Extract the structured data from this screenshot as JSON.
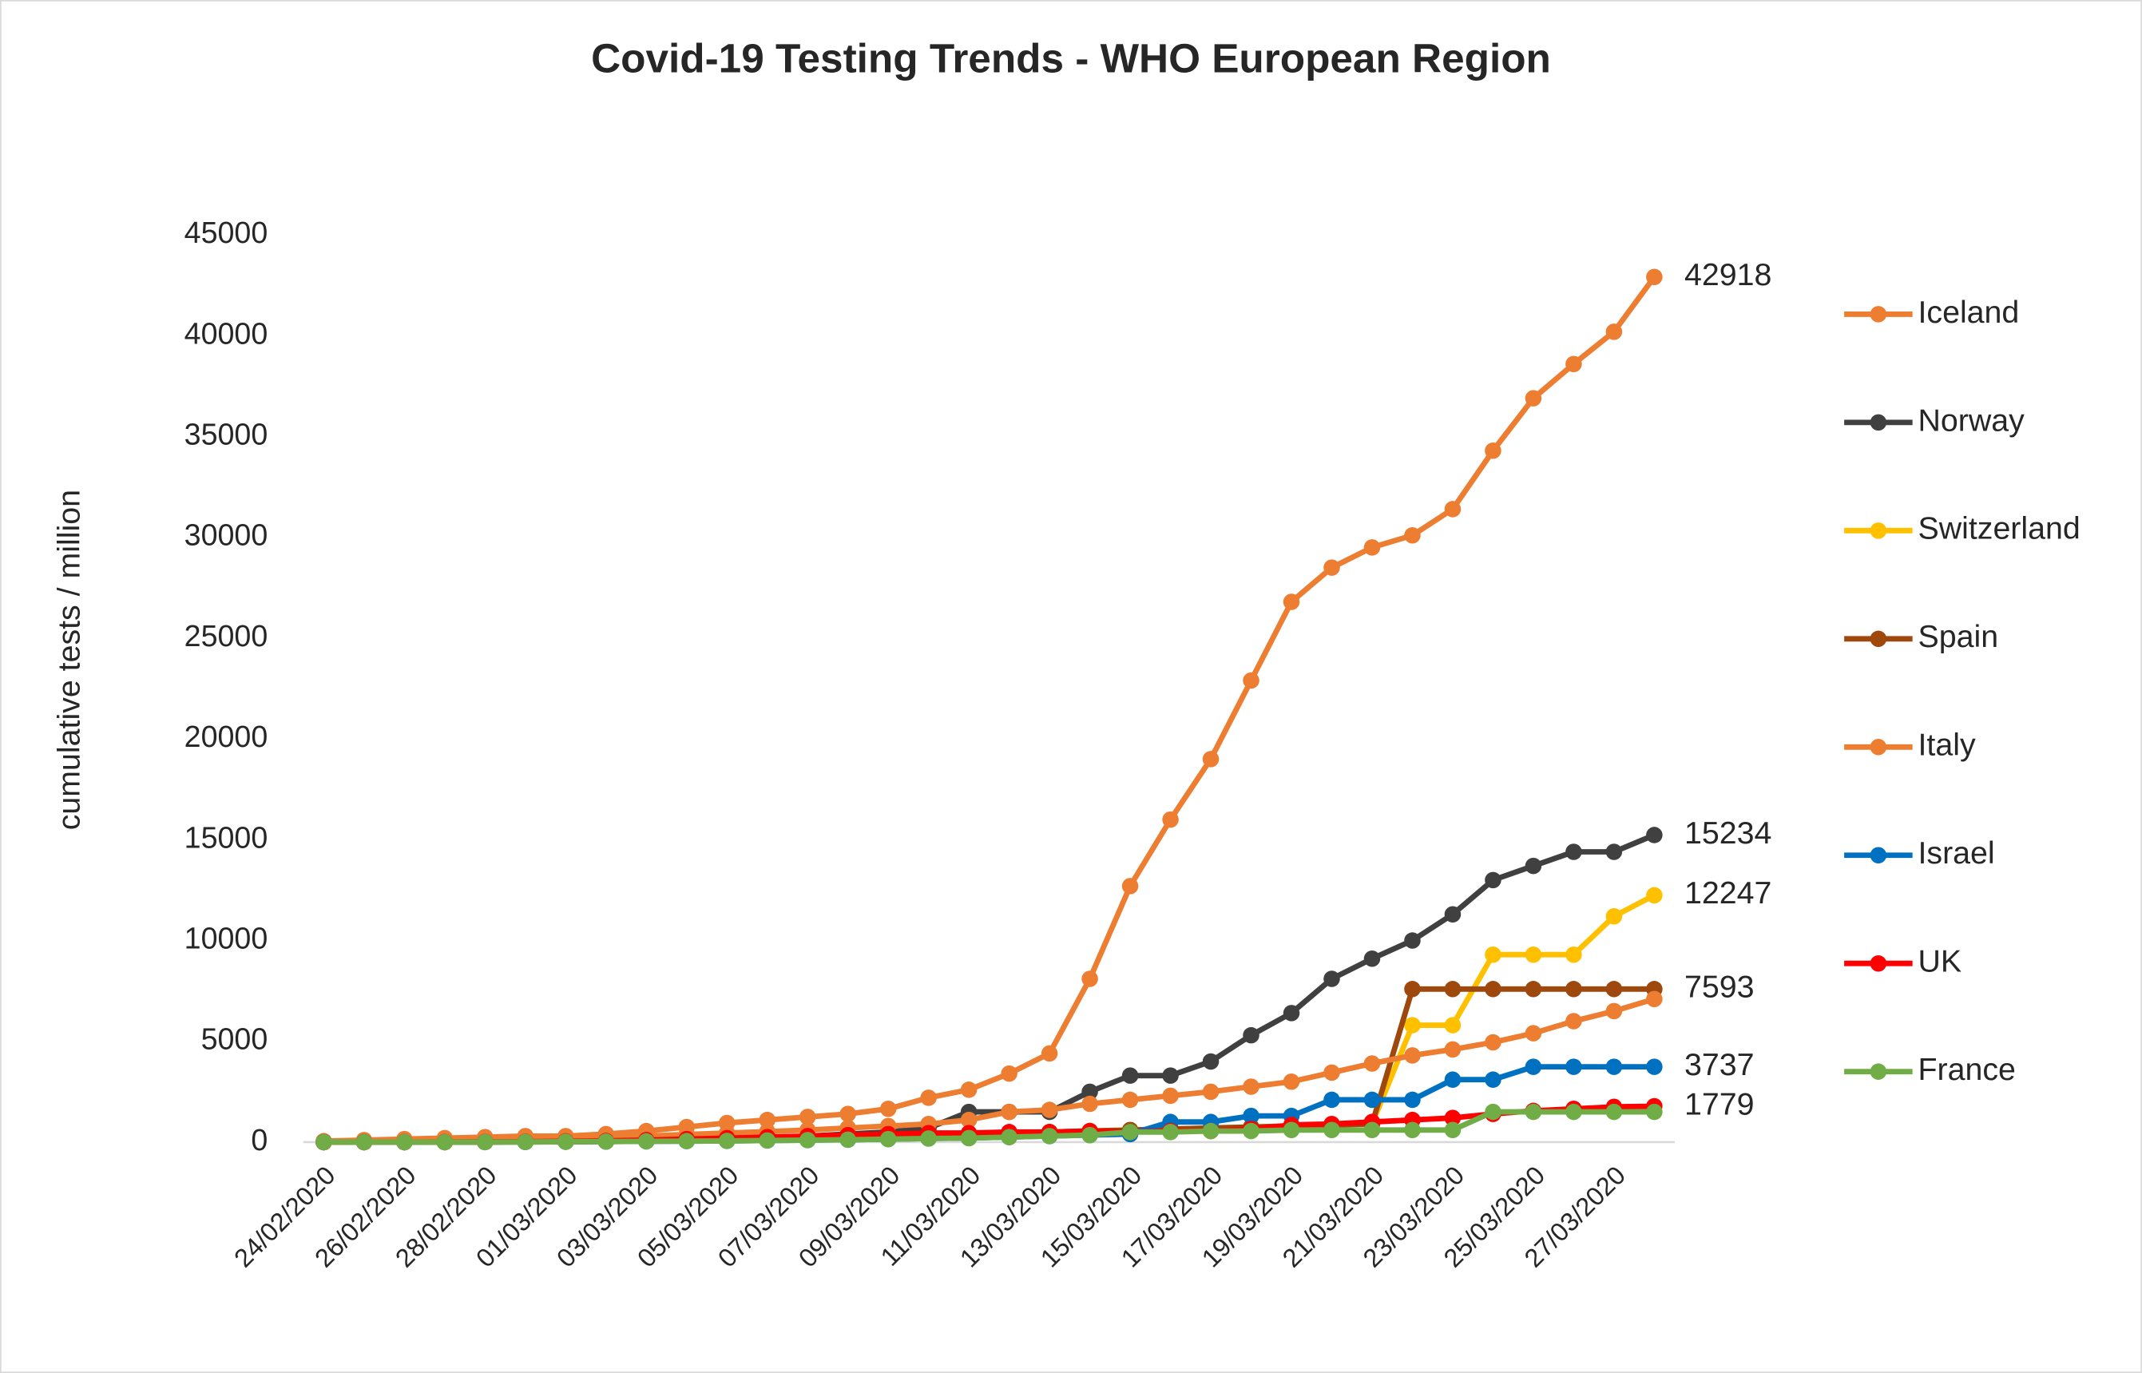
{
  "chart_data": {
    "type": "line",
    "title": "Covid-19 Testing Trends - WHO European Region",
    "y_label": "cumulative tests / million",
    "categories": [
      "24/02/2020",
      null,
      "26/02/2020",
      null,
      "28/02/2020",
      null,
      "01/03/2020",
      null,
      "03/03/2020",
      null,
      "05/03/2020",
      null,
      "07/03/2020",
      null,
      "09/03/2020",
      null,
      "11/03/2020",
      null,
      "13/03/2020",
      null,
      "15/03/2020",
      null,
      "17/03/2020",
      null,
      "19/03/2020",
      null,
      "21/03/2020",
      null,
      "23/03/2020",
      null,
      "25/03/2020",
      null,
      "27/03/2020",
      null
    ],
    "ylim": [
      0,
      45000
    ],
    "yticks": [
      0,
      5000,
      10000,
      15000,
      20000,
      25000,
      30000,
      35000,
      40000,
      45000
    ],
    "grid": false,
    "legend": "right",
    "series": [
      {
        "name": "Iceland",
        "color": "#ED7D31",
        "label_last": true,
        "values": [
          50,
          100,
          150,
          200,
          250,
          300,
          300,
          400,
          550,
          750,
          950,
          1100,
          1250,
          1400,
          1650,
          2200,
          2600,
          3400,
          4400,
          8100,
          12700,
          16000,
          19000,
          22900,
          26800,
          28500,
          29500,
          30100,
          31400,
          34300,
          36900,
          38600,
          40200,
          42918
        ]
      },
      {
        "name": "Norway",
        "color": "#404040",
        "label_last": true,
        "values": [
          0,
          0,
          0,
          5,
          10,
          20,
          30,
          50,
          80,
          100,
          150,
          200,
          300,
          400,
          500,
          700,
          1500,
          1500,
          1500,
          2500,
          3300,
          3300,
          4000,
          5300,
          6400,
          8100,
          9100,
          10000,
          11300,
          13000,
          13700,
          14400,
          14400,
          15234
        ]
      },
      {
        "name": "Switzerland",
        "color": "#FFC000",
        "label_last": true,
        "values": [
          0,
          0,
          0,
          0,
          5,
          10,
          20,
          30,
          50,
          80,
          100,
          150,
          200,
          250,
          300,
          350,
          400,
          450,
          500,
          550,
          600,
          650,
          700,
          750,
          800,
          850,
          900,
          5800,
          5800,
          9300,
          9300,
          9300,
          11200,
          12247
        ]
      },
      {
        "name": "Spain",
        "color": "#9E480E",
        "label_last": true,
        "values": [
          0,
          0,
          0,
          0,
          5,
          10,
          20,
          30,
          50,
          80,
          100,
          150,
          200,
          250,
          300,
          350,
          400,
          450,
          500,
          550,
          600,
          650,
          700,
          750,
          800,
          850,
          900,
          7593,
          7593,
          7593,
          7593,
          7593,
          7593,
          7593
        ]
      },
      {
        "name": "Italy",
        "color": "#ED7D31",
        "label_last": false,
        "values": [
          0,
          0,
          20,
          50,
          80,
          120,
          150,
          200,
          300,
          380,
          450,
          520,
          600,
          700,
          800,
          900,
          1100,
          1500,
          1600,
          1900,
          2100,
          2300,
          2500,
          2750,
          3000,
          3450,
          3900,
          4300,
          4600,
          4950,
          5400,
          6000,
          6500,
          7100
        ]
      },
      {
        "name": "Israel",
        "color": "#0070C0",
        "label_last": true,
        "values": [
          0,
          0,
          0,
          0,
          5,
          10,
          20,
          30,
          40,
          50,
          60,
          80,
          100,
          120,
          150,
          180,
          200,
          250,
          300,
          350,
          400,
          1000,
          1000,
          1300,
          1300,
          2100,
          2100,
          2100,
          3100,
          3100,
          3737,
          3737,
          3737,
          3737
        ]
      },
      {
        "name": "UK",
        "color": "#FF0000",
        "label_last": true,
        "values": [
          0,
          0,
          0,
          5,
          10,
          20,
          40,
          60,
          100,
          150,
          200,
          250,
          300,
          350,
          400,
          450,
          450,
          500,
          500,
          550,
          500,
          550,
          550,
          650,
          850,
          900,
          1000,
          1100,
          1200,
          1400,
          1550,
          1650,
          1750,
          1779
        ]
      },
      {
        "name": "France",
        "color": "#70AD47",
        "label_last": false,
        "values": [
          0,
          0,
          0,
          0,
          5,
          10,
          20,
          30,
          40,
          50,
          60,
          80,
          100,
          120,
          150,
          180,
          200,
          250,
          300,
          350,
          500,
          500,
          550,
          550,
          600,
          600,
          600,
          600,
          600,
          1500,
          1500,
          1500,
          1500,
          1500
        ]
      }
    ]
  }
}
